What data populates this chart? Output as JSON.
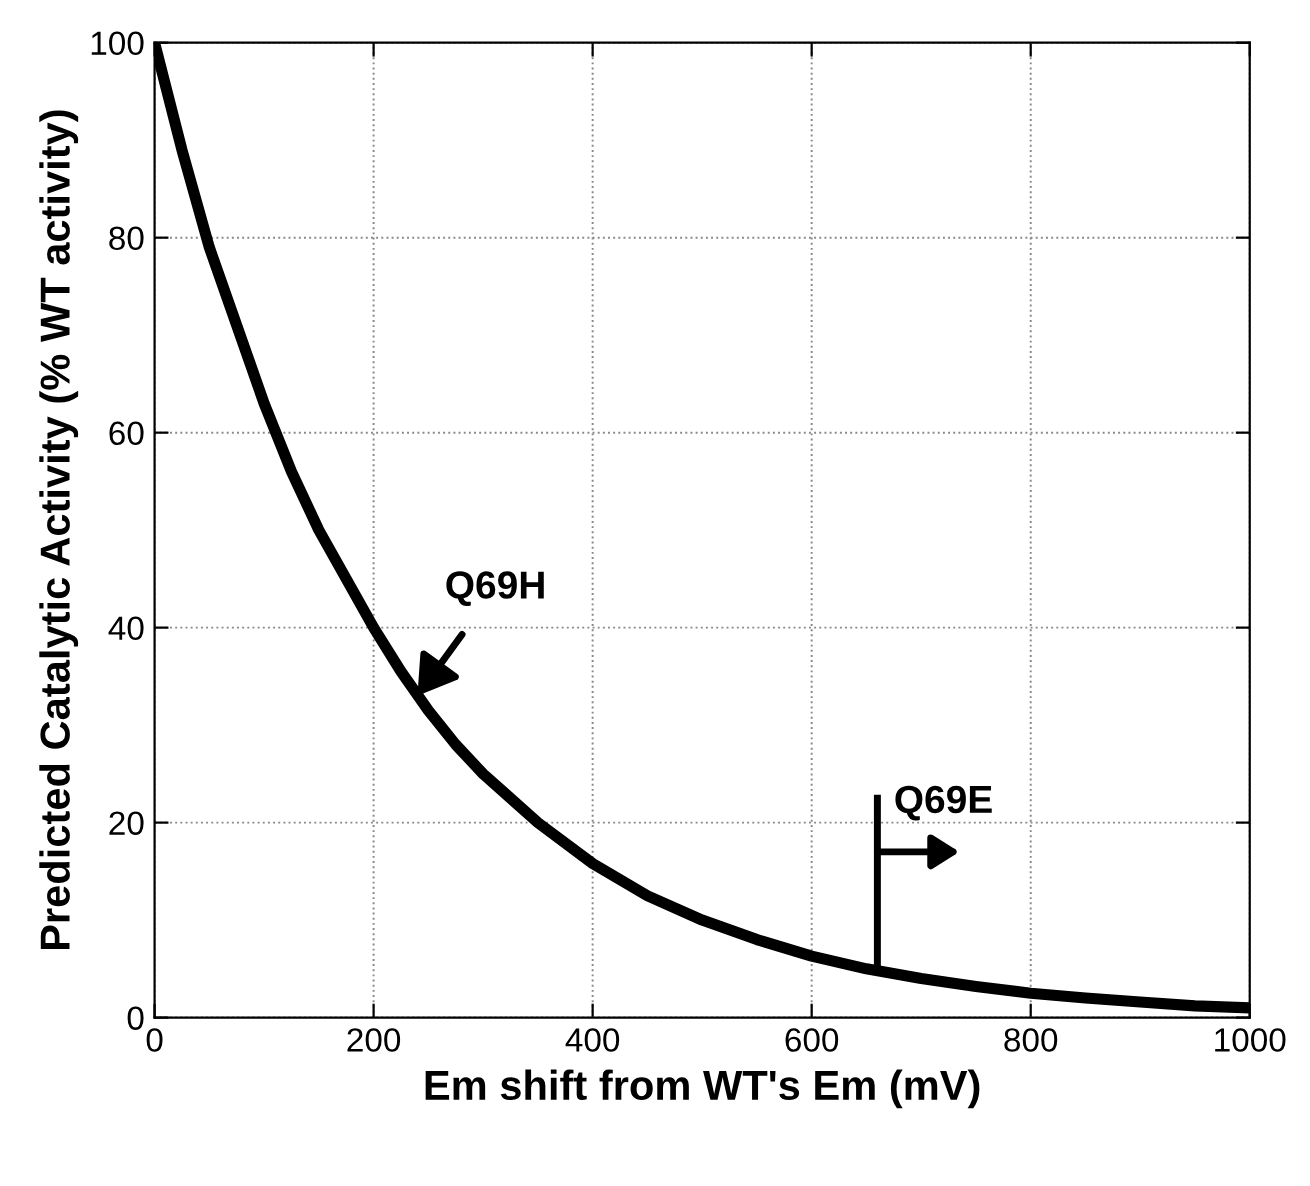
{
  "chart_data": {
    "type": "line",
    "xlabel": "Em shift from WT's Em (mV)",
    "ylabel": "Predicted Catalytic Activity (% WT activity)",
    "x": [
      0,
      25,
      50,
      75,
      100,
      125,
      150,
      175,
      200,
      225,
      250,
      275,
      300,
      350,
      400,
      450,
      500,
      550,
      600,
      650,
      700,
      750,
      800,
      850,
      900,
      950,
      1000
    ],
    "series": [
      {
        "color": "#000000",
        "values": [
          100,
          89,
          79,
          71,
          63,
          56,
          50,
          45,
          40,
          35.5,
          31.5,
          28,
          25,
          20,
          15.8,
          12.5,
          10,
          8,
          6.3,
          5,
          4,
          3.2,
          2.5,
          2,
          1.6,
          1.2,
          1
        ]
      }
    ],
    "xlim": [
      0,
      1000
    ],
    "ylim": [
      0,
      100
    ],
    "xticks": [
      0,
      200,
      400,
      600,
      800,
      1000
    ],
    "yticks": [
      0,
      20,
      40,
      60,
      80,
      100
    ],
    "grid": true,
    "marker": "none",
    "line_style": "solid",
    "annotations": [
      {
        "text": "Q69H",
        "x": 240,
        "y": 33
      },
      {
        "text": "Q69E",
        "x": 660,
        "y": 5
      }
    ]
  }
}
